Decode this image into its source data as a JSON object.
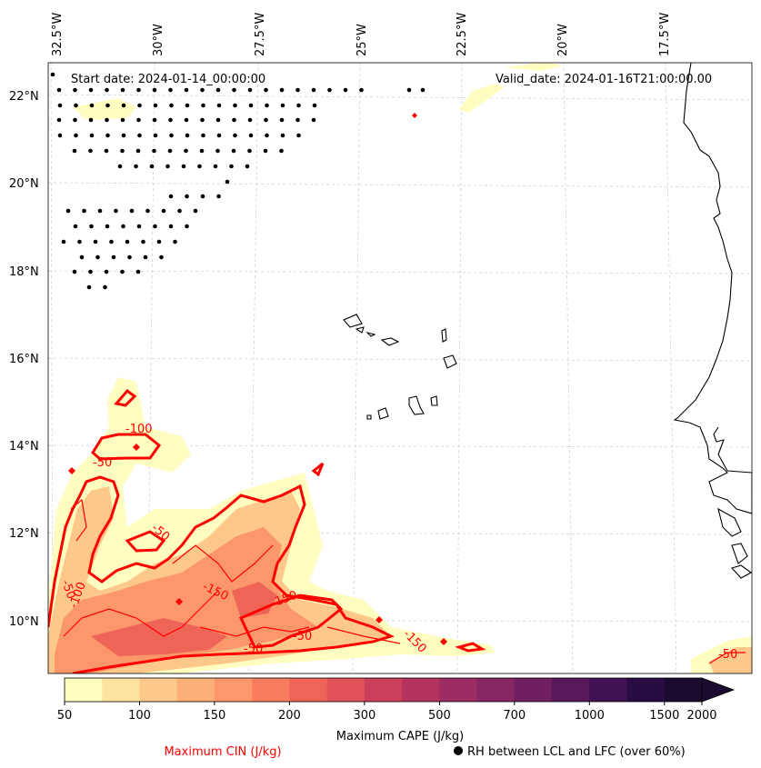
{
  "map": {
    "start_date": "Start date: 2024-01-14_00:00:00",
    "valid_date": "Valid_date: 2024-01-16T21:00:00.00",
    "lon_labels": [
      "32.5°W",
      "30°W",
      "27.5°W",
      "25°W",
      "22.5°W",
      "20°W",
      "17.5°W"
    ],
    "lat_labels": [
      "22°N",
      "20°N",
      "18°N",
      "16°N",
      "14°N",
      "12°N",
      "10°N"
    ],
    "cin_contour_labels": [
      "-100",
      "-50",
      "-50",
      "-50",
      "-100",
      "-150",
      "-150",
      "-50",
      "-50",
      "-150",
      "-50"
    ]
  },
  "colorbar": {
    "ticks": [
      "50",
      "100",
      "150",
      "200",
      "300",
      "500",
      "700",
      "1000",
      "1500",
      "2000"
    ],
    "colors": [
      "#fffdc0",
      "#fde2a0",
      "#fdc88a",
      "#fdaf78",
      "#fc976b",
      "#f87d5e",
      "#ee6558",
      "#e05158",
      "#cc3f5b",
      "#b5345f",
      "#9d2c62",
      "#862663",
      "#6f1f62",
      "#58185c",
      "#401254",
      "#2a0c45",
      "#1a0a30"
    ],
    "label": "Maximum CAPE (J/kg)"
  },
  "legend": {
    "cin_label": "Maximum CIN (J/kg)",
    "rh_label": "RH between LCL and LFC (over 60%)"
  }
}
